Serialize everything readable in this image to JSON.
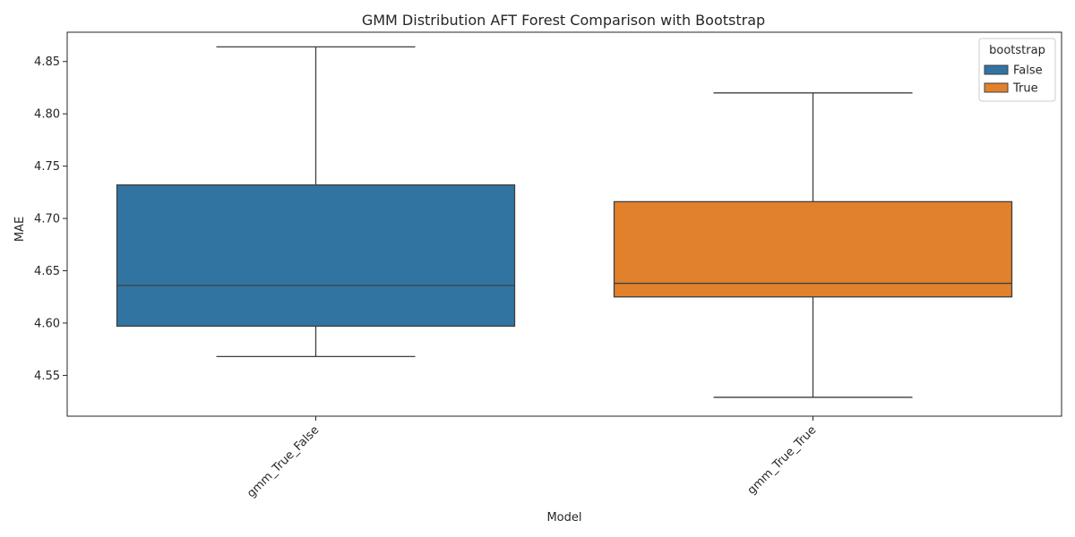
{
  "chart_data": {
    "type": "box",
    "title": "GMM Distribution AFT Forest Comparison with Bootstrap",
    "xlabel": "Model",
    "ylabel": "MAE",
    "ylim": [
      4.511,
      4.878
    ],
    "yticks": [
      4.55,
      4.6,
      4.65,
      4.7,
      4.75,
      4.8,
      4.85
    ],
    "ytick_labels": [
      "4.55",
      "4.60",
      "4.65",
      "4.70",
      "4.75",
      "4.80",
      "4.85"
    ],
    "categories": [
      "gmm_True_False",
      "gmm_True_True"
    ],
    "legend": {
      "title": "bootstrap",
      "position": "top-right",
      "entries": [
        "False",
        "True"
      ]
    },
    "series": [
      {
        "name": "False",
        "color": "#3274a1",
        "category": "gmm_True_False",
        "whisker_low": 4.568,
        "q1": 4.597,
        "median": 4.636,
        "q3": 4.732,
        "whisker_high": 4.864
      },
      {
        "name": "True",
        "color": "#e1812c",
        "category": "gmm_True_True",
        "whisker_low": 4.529,
        "q1": 4.625,
        "median": 4.638,
        "q3": 4.716,
        "whisker_high": 4.82
      }
    ],
    "grid": false
  }
}
